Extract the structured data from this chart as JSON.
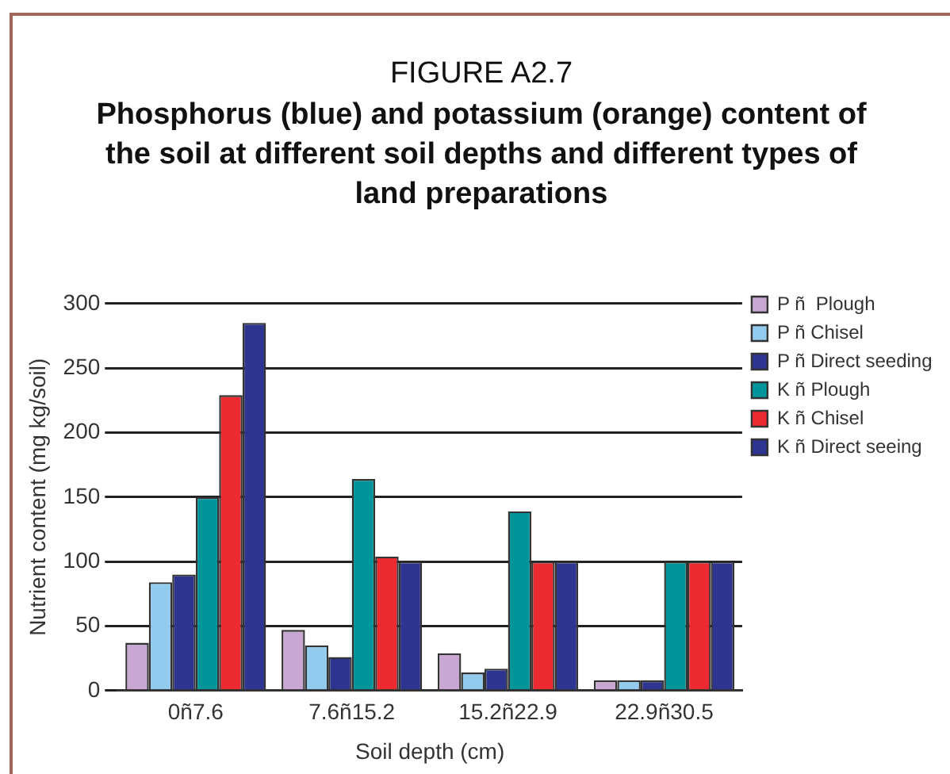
{
  "chart_data": {
    "type": "bar",
    "title": "FIGURE A2.7",
    "subtitle": "Phosphorus (blue) and potassium (orange) content of the soil at different soil depths and different types of land preparations",
    "xlabel": "Soil depth (cm)",
    "ylabel": "Nutrient content (mg kg/soil)",
    "categories": [
      "0ñ7.6",
      "7.6ñ15.2",
      "15.2ñ22.9",
      "22.9ñ30.5"
    ],
    "series": [
      {
        "name": "P ñ  Plough",
        "color": "#c8a8d2",
        "values": [
          37,
          47,
          29,
          8
        ]
      },
      {
        "name": "P ñ Chisel",
        "color": "#92cbee",
        "values": [
          84,
          35,
          14,
          8
        ]
      },
      {
        "name": "P ñ Direct seeding",
        "color": "#2e3591",
        "values": [
          90,
          26,
          17,
          8
        ]
      },
      {
        "name": "K ñ Plough",
        "color": "#00959a",
        "values": [
          150,
          164,
          139,
          100
        ]
      },
      {
        "name": "K ñ Chisel",
        "color": "#ec2a32",
        "values": [
          229,
          104,
          100,
          100
        ]
      },
      {
        "name": "K ñ Direct seeing",
        "color": "#2e3591",
        "values": [
          285,
          100,
          100,
          100
        ]
      }
    ],
    "ylim": [
      0,
      300
    ],
    "yticks": [
      0,
      50,
      100,
      150,
      200,
      250,
      300
    ],
    "grid": "y",
    "legend": "right"
  }
}
